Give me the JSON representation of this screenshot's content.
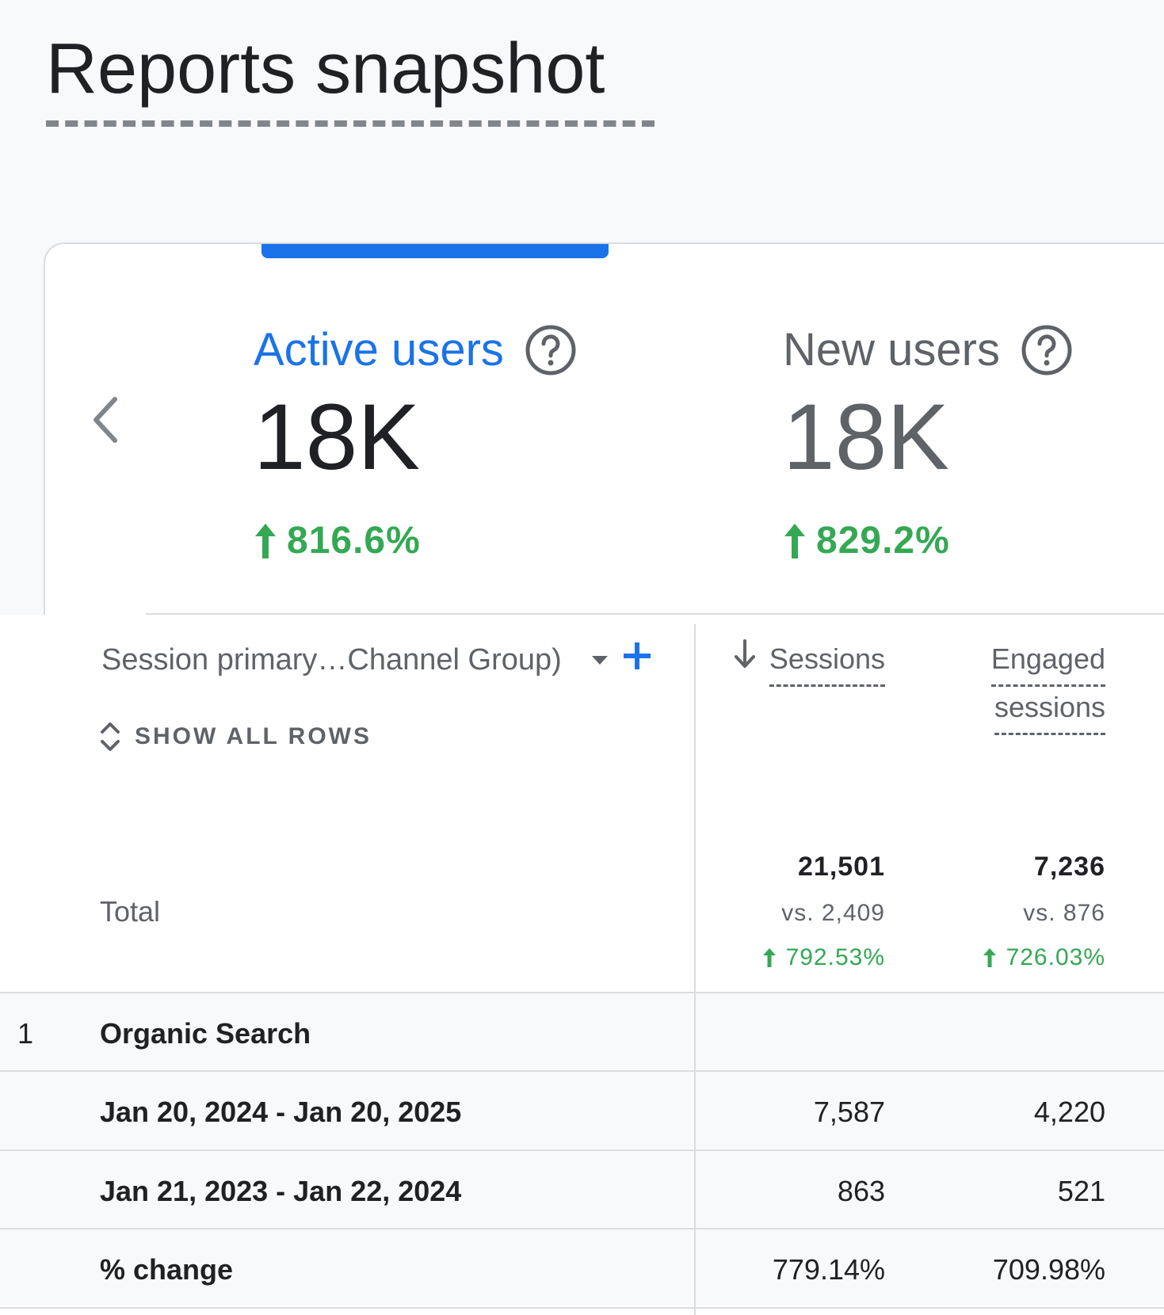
{
  "page": {
    "title": "Reports snapshot"
  },
  "scorecards": {
    "metrics": [
      {
        "label": "Active users",
        "value": "18K",
        "change": "816.6%",
        "state": "selected"
      },
      {
        "label": "New users",
        "value": "18K",
        "change": "829.2%",
        "state": "unselected"
      }
    ]
  },
  "table": {
    "dimension_header": "Session primary…Channel Group)",
    "show_rows_label": "SHOW ALL ROWS",
    "columns": [
      {
        "label": "Sessions",
        "sorted": "descending"
      },
      {
        "label_line1": "Engaged",
        "label_line2": "sessions"
      }
    ],
    "total": {
      "label": "Total",
      "sessions": {
        "value": "21,501",
        "vs": "vs. 2,409",
        "change": "792.53%"
      },
      "engaged": {
        "value": "7,236",
        "vs": "vs. 876",
        "change": "726.03%"
      }
    },
    "rows": [
      {
        "index": "1",
        "label": "Organic Search",
        "sessions": "",
        "engaged": ""
      },
      {
        "index": "",
        "label": "Jan 20, 2024 - Jan 20, 2025",
        "sessions": "7,587",
        "engaged": "4,220"
      },
      {
        "index": "",
        "label": "Jan 21, 2023 - Jan 22, 2024",
        "sessions": "863",
        "engaged": "521"
      },
      {
        "index": "",
        "label": "% change",
        "sessions": "779.14%",
        "engaged": "709.98%"
      }
    ]
  },
  "colors": {
    "accent": "#1a73e8",
    "positive": "#34a853",
    "text_primary": "#202124",
    "text_secondary": "#5f6368"
  }
}
